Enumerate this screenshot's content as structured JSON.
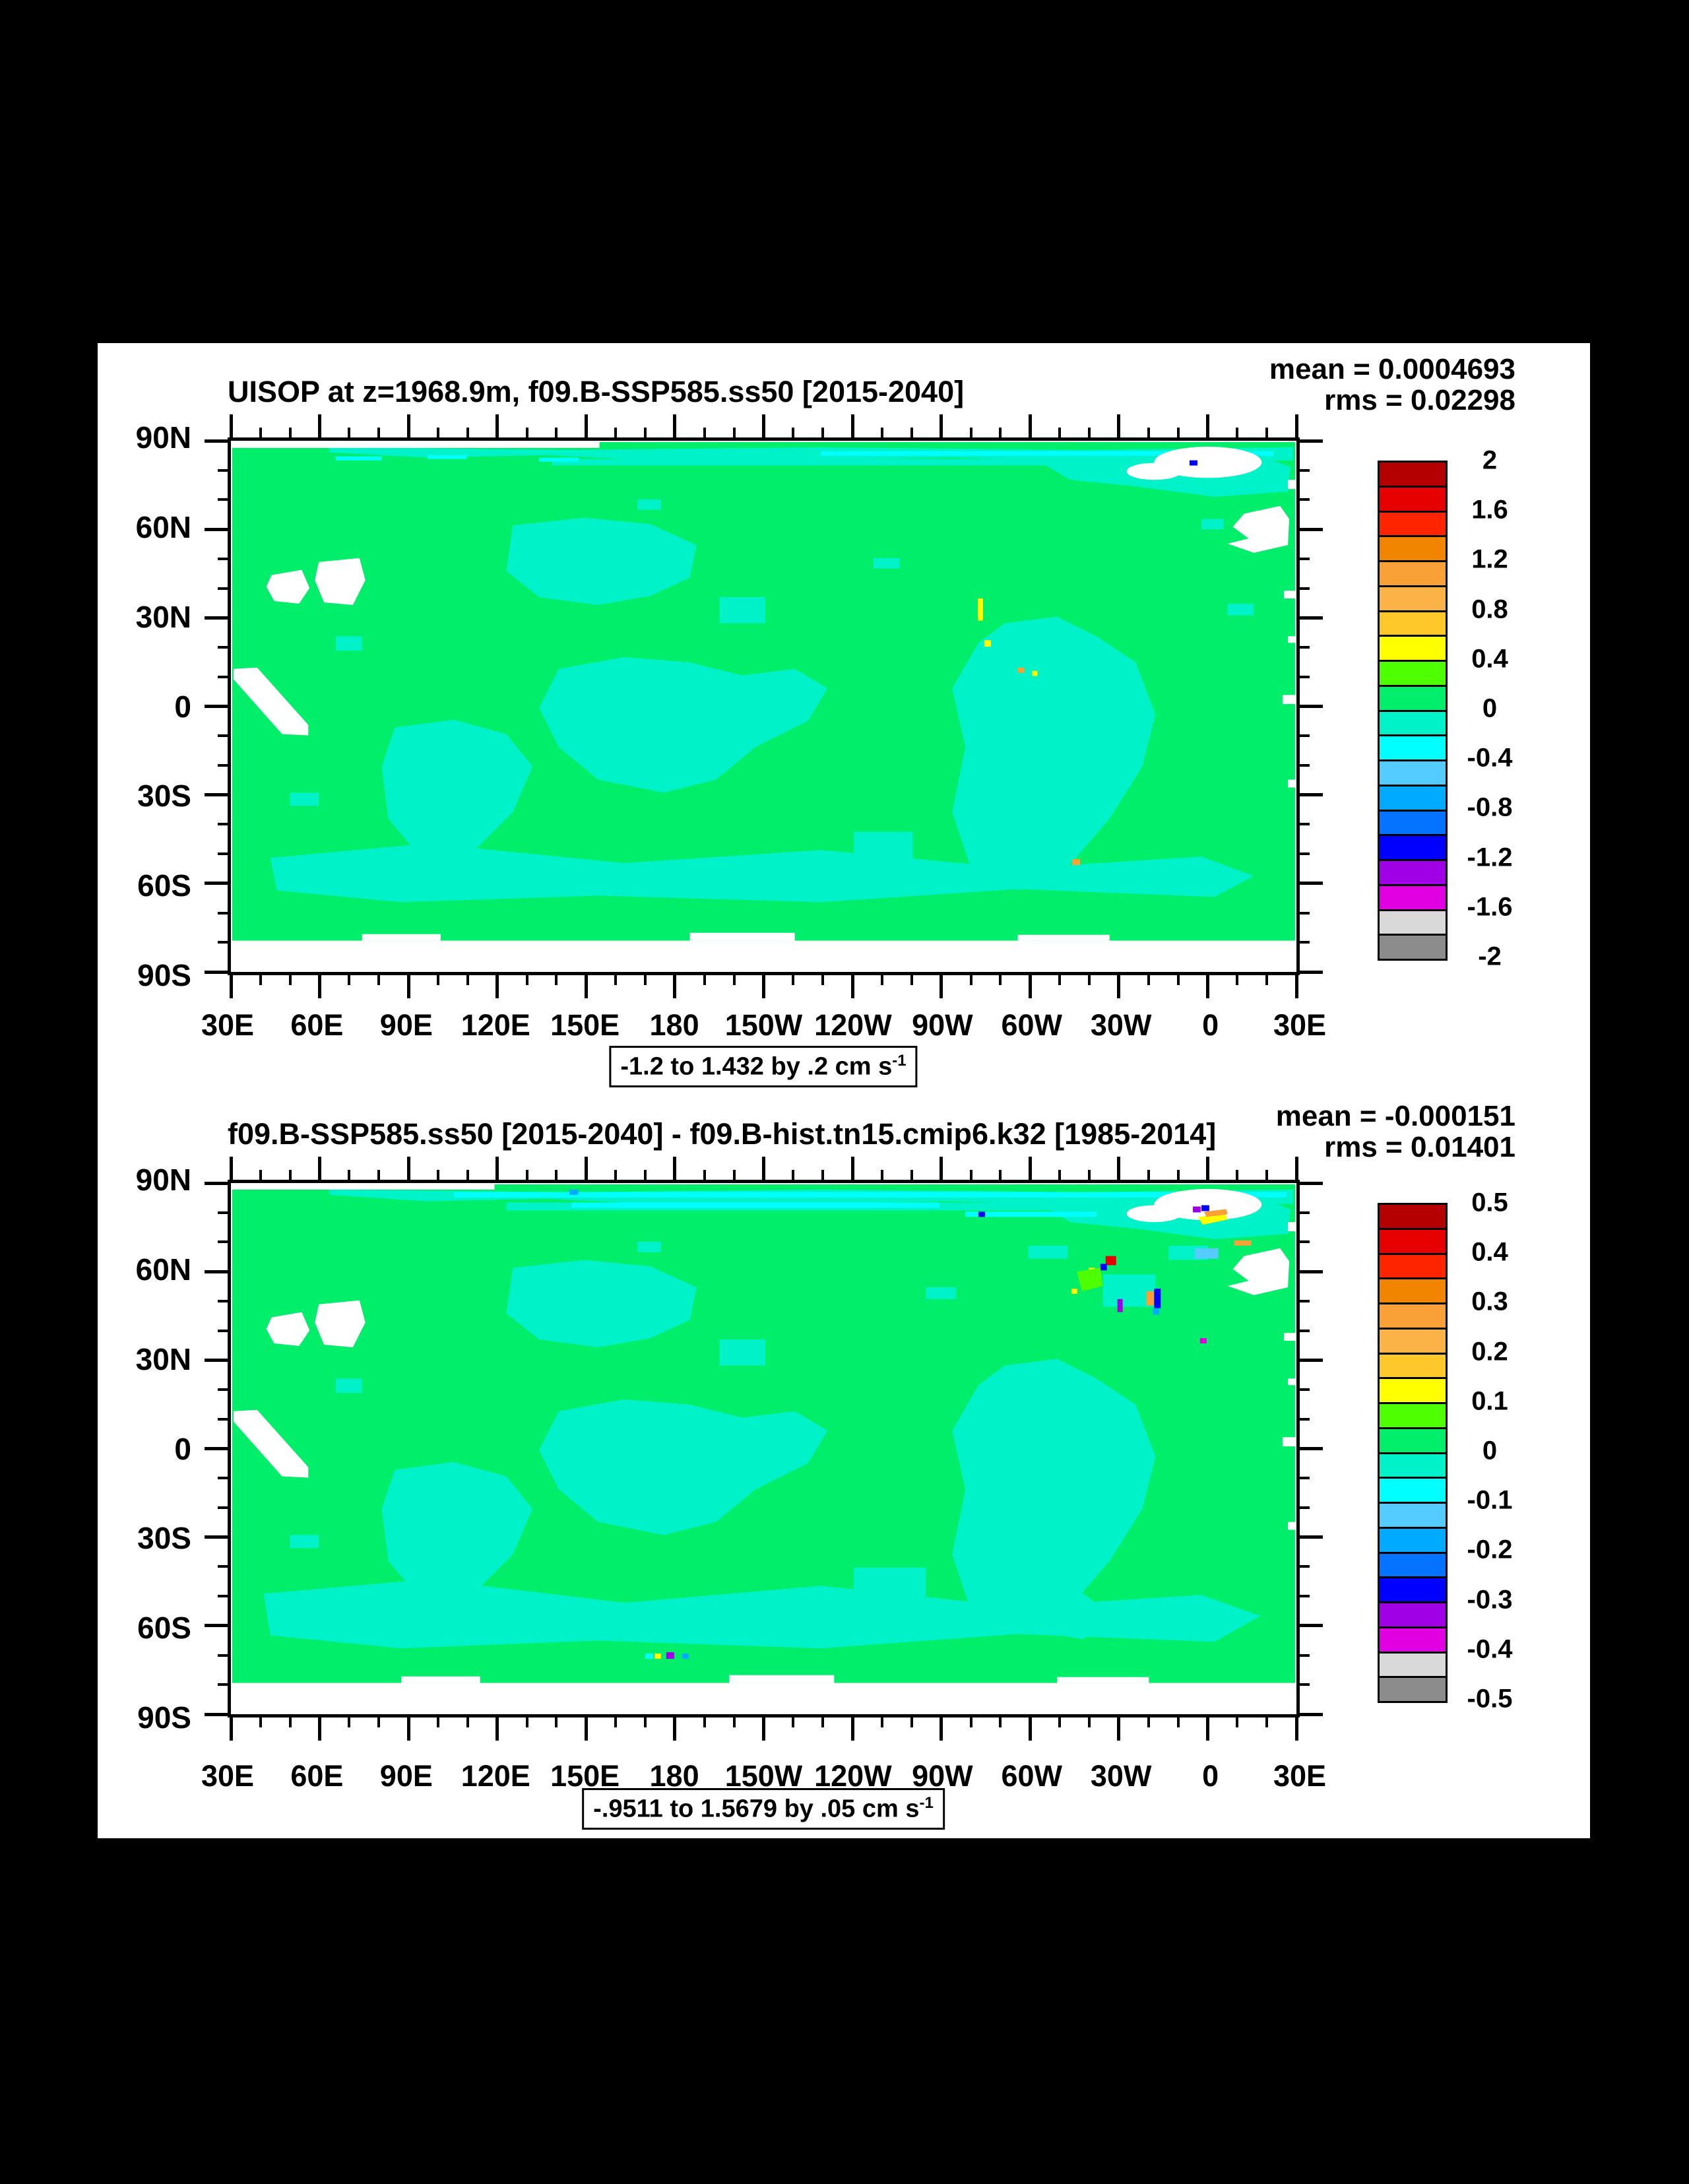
{
  "colors": {
    "background": "#000000",
    "sheet": "#ffffff",
    "ink": "#000000",
    "ocean_positive_green": "#00ee6a",
    "ocean_negative_turquoise": "#00f2c8",
    "land_mask": "#ffffff"
  },
  "colorbar_colors": [
    "#b50000",
    "#e60000",
    "#ff2400",
    "#f28500",
    "#f9a036",
    "#fbb347",
    "#ffc82a",
    "#ffff00",
    "#4dff00",
    "#00ee6a",
    "#00f2c8",
    "#00ffff",
    "#54ccff",
    "#00aaff",
    "#0473ff",
    "#0000ff",
    "#a000e6",
    "#e100e1",
    "#d9d9d9",
    "#8c8c8c"
  ],
  "axes": {
    "x_tick_labels": [
      "30E",
      "60E",
      "90E",
      "120E",
      "150E",
      "180",
      "150W",
      "120W",
      "90W",
      "60W",
      "30W",
      "0",
      "30E"
    ],
    "y_tick_labels": [
      "90N",
      "60N",
      "30N",
      "0",
      "30S",
      "60S",
      "90S"
    ],
    "minor_ticks_per_major": 3
  },
  "panels": [
    {
      "id": "top",
      "title": "UISOP at z=1968.9m, f09.B-SSP585.ss50 [2015-2040]",
      "mean": "mean = 0.0004693",
      "rms": "rms = 0.02298",
      "range_text": "-1.2 to 1.432 by .2 cm s",
      "range_sup": "-1",
      "colorbar_labels": [
        "2",
        "1.6",
        "1.2",
        "0.8",
        "0.4",
        "0",
        "-0.4",
        "-0.8",
        "-1.2",
        "-1.6",
        "-2"
      ]
    },
    {
      "id": "bottom",
      "title": "f09.B-SSP585.ss50 [2015-2040] - f09.B-hist.tn15.cmip6.k32 [1985-2014]",
      "mean": "mean = -0.000151",
      "rms": "rms = 0.01401",
      "range_text": "-.9511 to 1.5679 by .05 cm s",
      "range_sup": "-1",
      "colorbar_labels": [
        "0.5",
        "0.4",
        "0.3",
        "0.2",
        "0.1",
        "0",
        "-0.1",
        "-0.2",
        "-0.3",
        "-0.4",
        "-0.5"
      ]
    }
  ],
  "chart_data": [
    {
      "type": "heatmap",
      "title": "UISOP at z=1968.9m, f09.B-SSP585.ss50 [2015-2040]",
      "variable": "UISOP",
      "depth": "z=1968.9m",
      "case": "f09.B-SSP585.ss50",
      "period": "2015-2040",
      "units": "cm s-1",
      "stats": {
        "mean": 0.0004693,
        "rms": 0.02298
      },
      "field_range": {
        "min": -1.2,
        "max": 1.432,
        "contour_interval": 0.2
      },
      "levels": [
        -2,
        -1.8,
        -1.6,
        -1.4,
        -1.2,
        -1,
        -0.8,
        -0.6,
        -0.4,
        -0.2,
        0,
        0.2,
        0.4,
        0.6,
        0.8,
        1,
        1.2,
        1.4,
        1.6,
        1.8,
        2
      ],
      "colorbar_tick_labels": [
        "2",
        "1.6",
        "1.2",
        "0.8",
        "0.4",
        "0",
        "-0.4",
        "-0.8",
        "-1.2",
        "-1.6",
        "-2"
      ],
      "x_axis": {
        "labels": [
          "30E",
          "60E",
          "90E",
          "120E",
          "150E",
          "180",
          "150W",
          "120W",
          "90W",
          "60W",
          "30W",
          "0",
          "30E"
        ],
        "range_degrees_east": [
          30,
          390
        ]
      },
      "y_axis": {
        "labels": [
          "90N",
          "60N",
          "30N",
          "0",
          "30S",
          "60S",
          "90S"
        ],
        "range_latitude": [
          90,
          -90
        ]
      },
      "legend_position": "right",
      "grid": false,
      "field_summary": "Global ocean field almost entirely in the 0 to 0.2 bin (spring green) with broad irregular patches in the -0.2 to 0 bin (turquoise), mainly in the equatorial/South Pacific, south Indian Ocean, Atlantic and a circumpolar band near 60S; continents, Greenland and the Antarctic margin are masked white; a handful of isolated yellow/orange speckles exceed +0.2."
    },
    {
      "type": "heatmap",
      "title": "f09.B-SSP585.ss50 [2015-2040] - f09.B-hist.tn15.cmip6.k32 [1985-2014]",
      "variable": "UISOP difference",
      "depth": "z=1968.9m",
      "case_minuend": "f09.B-SSP585.ss50 [2015-2040]",
      "case_subtrahend": "f09.B-hist.tn15.cmip6.k32 [1985-2014]",
      "units": "cm s-1",
      "stats": {
        "mean": -0.000151,
        "rms": 0.01401
      },
      "field_range": {
        "min": -0.9511,
        "max": 1.5679,
        "contour_interval": 0.05
      },
      "levels": [
        -0.5,
        -0.45,
        -0.4,
        -0.35,
        -0.3,
        -0.25,
        -0.2,
        -0.15,
        -0.1,
        -0.05,
        0,
        0.05,
        0.1,
        0.15,
        0.2,
        0.25,
        0.3,
        0.35,
        0.4,
        0.45,
        0.5
      ],
      "colorbar_tick_labels": [
        "0.5",
        "0.4",
        "0.3",
        "0.2",
        "0.1",
        "0",
        "-0.1",
        "-0.2",
        "-0.3",
        "-0.4",
        "-0.5"
      ],
      "x_axis": {
        "labels": [
          "30E",
          "60E",
          "90E",
          "120E",
          "150E",
          "180",
          "150W",
          "120W",
          "90W",
          "60W",
          "30W",
          "0",
          "30E"
        ],
        "range_degrees_east": [
          30,
          390
        ]
      },
      "y_axis": {
        "labels": [
          "90N",
          "60N",
          "30N",
          "0",
          "30S",
          "60S",
          "90S"
        ],
        "range_latitude": [
          90,
          -90
        ]
      },
      "legend_position": "right",
      "grid": false,
      "field_summary": "Difference field mostly in the 0 to 0.05 bin (spring green) with -0.05 to 0 patches (turquoise) in the same regions as the top panel plus a cyan strip along the Arctic edge; small strong anomalies (red, blue, purple, yellow/orange speckles) cluster in the subpolar North Atlantic near Greenland and along 60S; land masked white."
    }
  ]
}
